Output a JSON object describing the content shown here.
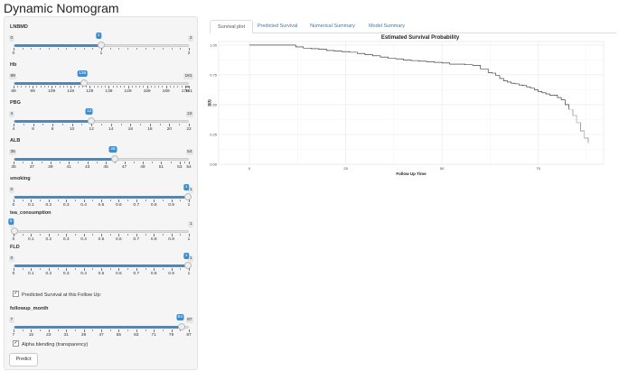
{
  "app": {
    "title": "Dynamic Nomogram"
  },
  "sliders": [
    {
      "id": "lnbmd",
      "label": "LNBMD",
      "min": "0",
      "max": "2",
      "value": "1",
      "frac": 0.5,
      "ticks": [
        "0",
        "1",
        "2"
      ],
      "minor_per": 9
    },
    {
      "id": "hb",
      "label": "Hb",
      "min": "89",
      "max": "181",
      "value": "126",
      "frac": 0.402,
      "ticks": [
        "89",
        "99",
        "109",
        "119",
        "129",
        "139",
        "149",
        "159",
        "169",
        "179",
        "181"
      ],
      "minor_per": 4,
      "tick_fracs": [
        0,
        0.1087,
        0.2174,
        0.3261,
        0.4348,
        0.5435,
        0.6522,
        0.7609,
        0.8696,
        0.9783,
        1
      ]
    },
    {
      "id": "pbg",
      "label": "PBG",
      "min": "4",
      "max": "22",
      "value": "12",
      "frac": 0.444,
      "ticks": [
        "4",
        "6",
        "8",
        "10",
        "12",
        "14",
        "16",
        "18",
        "20",
        "22"
      ],
      "minor_per": 1
    },
    {
      "id": "alb",
      "label": "ALB",
      "min": "35",
      "max": "54",
      "value": "46",
      "frac": 0.579,
      "ticks": [
        "35",
        "37",
        "39",
        "41",
        "43",
        "45",
        "47",
        "49",
        "51",
        "53",
        "54"
      ],
      "minor_per": 1,
      "tick_fracs": [
        0,
        0.1053,
        0.2105,
        0.3158,
        0.4211,
        0.5263,
        0.6316,
        0.7368,
        0.8421,
        0.9474,
        1
      ]
    },
    {
      "id": "smoking",
      "label": "smoking",
      "min": "0",
      "max": "1",
      "value": "1",
      "frac": 1.0,
      "ticks": [
        "0",
        "0.1",
        "0.2",
        "0.3",
        "0.4",
        "0.5",
        "0.6",
        "0.7",
        "0.8",
        "0.9",
        "1"
      ],
      "minor_per": 1
    },
    {
      "id": "tea",
      "label": "tea_consumption",
      "min": "0",
      "max": "1",
      "value": "0",
      "frac": 0.0,
      "ticks": [
        "0",
        "0.1",
        "0.2",
        "0.3",
        "0.4",
        "0.5",
        "0.6",
        "0.7",
        "0.8",
        "0.9",
        "1"
      ],
      "minor_per": 1
    },
    {
      "id": "fld",
      "label": "FLD",
      "min": "0",
      "max": "1",
      "value": "1",
      "frac": 1.0,
      "ticks": [
        "0",
        "0.1",
        "0.2",
        "0.3",
        "0.4",
        "0.5",
        "0.6",
        "0.7",
        "0.8",
        "0.9",
        "1"
      ],
      "minor_per": 1
    }
  ],
  "followup_slider": {
    "id": "followup",
    "label": "followup_month",
    "min": "7",
    "max": "87",
    "value": "84",
    "frac": 0.9625,
    "ticks": [
      "7",
      "15",
      "23",
      "31",
      "39",
      "47",
      "55",
      "63",
      "71",
      "79",
      "87"
    ],
    "minor_per": 1
  },
  "checkboxes": {
    "predicted": {
      "label": "Predicted Survival at this Follow Up:",
      "checked": true
    },
    "alpha": {
      "label": "Alpha blending (transparency)",
      "checked": true
    }
  },
  "predict_button": "Predict",
  "tabs": [
    "Survival plot",
    "Predicted Survival",
    "Numerical Summary",
    "Model Summary"
  ],
  "active_tab": 0,
  "colors": {
    "accent": "#428bca",
    "link": "#337ab7"
  },
  "chart_data": {
    "type": "line",
    "title": "Estimated Survival Probability",
    "xlabel": "Follow Up Time",
    "ylabel": "S(t)",
    "xlim": [
      -8,
      92
    ],
    "ylim": [
      0.0,
      1.03
    ],
    "xticks": [
      0,
      25,
      50,
      75
    ],
    "yticks": [
      0.0,
      0.25,
      0.5,
      0.75,
      1.0
    ],
    "ytick_labels": [
      "0.00",
      "0.25",
      "0.50",
      "0.75",
      "1.00"
    ],
    "grid": true,
    "series": [
      {
        "x": [
          0,
          10,
          12,
          14,
          16,
          18,
          20,
          22,
          24,
          26,
          28,
          30,
          32,
          34,
          36,
          38,
          40,
          42,
          44,
          46,
          48,
          50,
          52,
          54,
          56,
          58,
          60,
          62,
          63,
          64,
          65,
          66,
          67,
          68,
          69,
          70,
          71,
          72,
          73,
          74,
          75,
          76,
          77,
          78,
          79,
          80,
          81,
          82,
          83,
          84,
          85,
          86,
          87,
          88
        ],
        "y": [
          1.0,
          1.0,
          0.985,
          0.975,
          0.97,
          0.965,
          0.955,
          0.95,
          0.945,
          0.94,
          0.93,
          0.92,
          0.91,
          0.9,
          0.89,
          0.885,
          0.875,
          0.87,
          0.865,
          0.86,
          0.855,
          0.85,
          0.84,
          0.84,
          0.835,
          0.83,
          0.8,
          0.77,
          0.765,
          0.745,
          0.72,
          0.7,
          0.69,
          0.68,
          0.675,
          0.665,
          0.66,
          0.65,
          0.64,
          0.625,
          0.61,
          0.6,
          0.59,
          0.58,
          0.58,
          0.56,
          0.54,
          0.5,
          0.46,
          0.41,
          0.35,
          0.28,
          0.22,
          0.18
        ]
      }
    ]
  }
}
